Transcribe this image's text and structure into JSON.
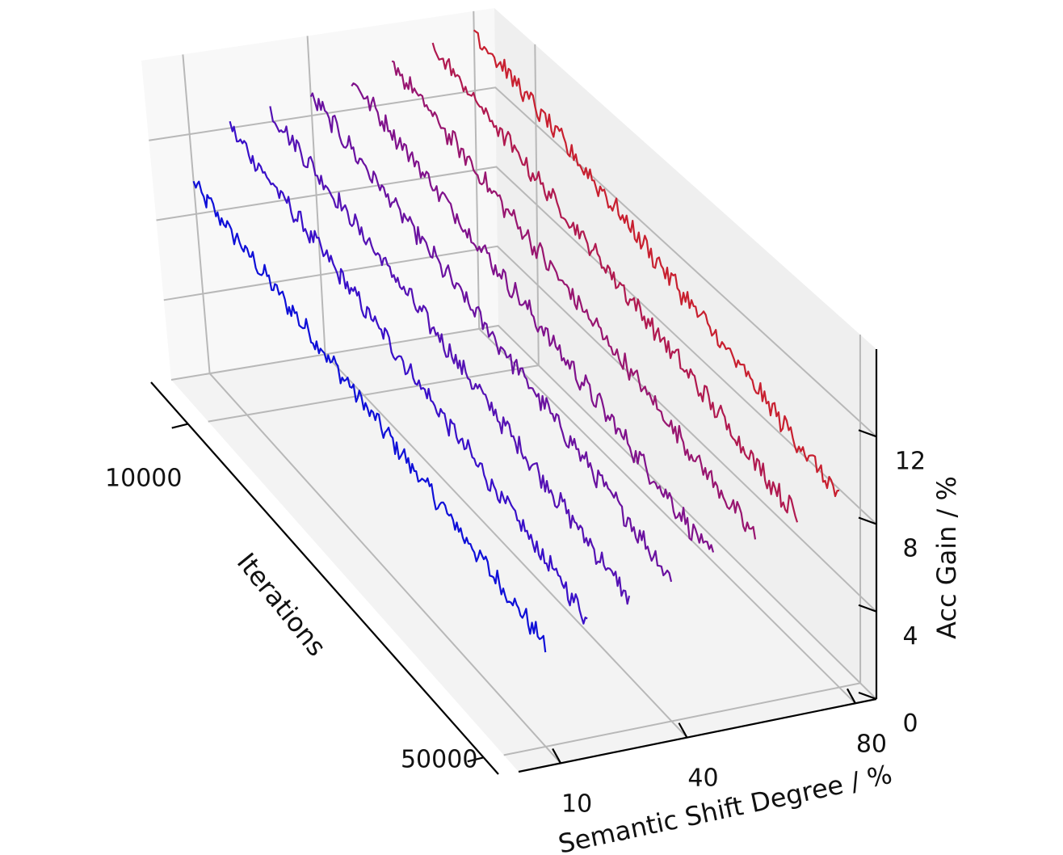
{
  "chart_data": {
    "type": "line",
    "projection": "3d",
    "title": "",
    "xlabel": "Iterations",
    "ylabel": "Semantic Shift Degree / %",
    "zlabel": "Acc Gain / %",
    "x_ticks": [
      "10000",
      "50000"
    ],
    "y_ticks": [
      "10",
      "40",
      "80"
    ],
    "z_ticks": [
      "0",
      "4",
      "8",
      "12"
    ],
    "xlim": [
      5000,
      52000
    ],
    "ylim": [
      0,
      85
    ],
    "zlim": [
      0,
      16
    ],
    "grid": true,
    "legend": "none",
    "series": [
      {
        "shift": 10,
        "iter_start": 5000,
        "iter_end": 50000,
        "gain_start": 9.5,
        "gain_end": 5.0,
        "color": "#1010d8"
      },
      {
        "shift": 20,
        "iter_start": 5000,
        "iter_end": 50000,
        "gain_start": 12.0,
        "gain_end": 5.8,
        "color": "#3a10c8"
      },
      {
        "shift": 30,
        "iter_start": 5000,
        "iter_end": 50000,
        "gain_start": 12.5,
        "gain_end": 6.3,
        "color": "#5512b4"
      },
      {
        "shift": 40,
        "iter_start": 5000,
        "iter_end": 50000,
        "gain_start": 13.0,
        "gain_end": 6.8,
        "color": "#6a12a0"
      },
      {
        "shift": 50,
        "iter_start": 5000,
        "iter_end": 50000,
        "gain_start": 13.5,
        "gain_end": 7.3,
        "color": "#80128c"
      },
      {
        "shift": 60,
        "iter_start": 5000,
        "iter_end": 50000,
        "gain_start": 14.0,
        "gain_end": 7.8,
        "color": "#981670"
      },
      {
        "shift": 70,
        "iter_start": 5000,
        "iter_end": 50000,
        "gain_start": 14.5,
        "gain_end": 8.3,
        "color": "#b01a50"
      },
      {
        "shift": 80,
        "iter_start": 5000,
        "iter_end": 50000,
        "gain_start": 15.0,
        "gain_end": 8.8,
        "color": "#c82030"
      }
    ]
  }
}
